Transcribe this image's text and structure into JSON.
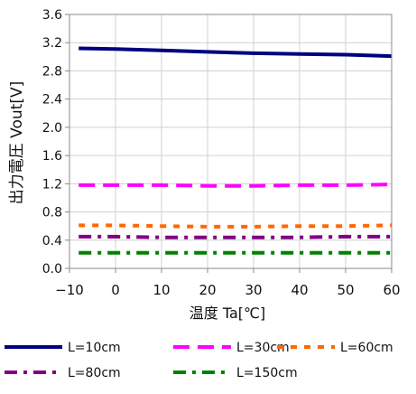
{
  "chart_data": {
    "type": "line",
    "title": "",
    "xlabel": "温度 Ta[℃]",
    "ylabel": "出力電圧 Vout[V]",
    "xlim": [
      -10,
      60
    ],
    "ylim": [
      0.0,
      3.6
    ],
    "x_ticks": [
      "−10",
      "0",
      "10",
      "20",
      "30",
      "40",
      "50",
      "60"
    ],
    "y_ticks": [
      "0.0",
      "0.4",
      "0.8",
      "1.2",
      "1.6",
      "2.0",
      "2.4",
      "2.8",
      "3.2",
      "3.6"
    ],
    "grid": true,
    "legend_position": "bottom",
    "x": [
      -8,
      0,
      10,
      20,
      30,
      40,
      50,
      60
    ],
    "series": [
      {
        "name": "L=10cm",
        "color": "#000080",
        "dash": "solid",
        "values": [
          3.12,
          3.11,
          3.09,
          3.07,
          3.05,
          3.04,
          3.03,
          3.01
        ]
      },
      {
        "name": "L=30cm",
        "color": "#ff00ff",
        "dash": "long-dash",
        "values": [
          1.18,
          1.18,
          1.18,
          1.17,
          1.17,
          1.18,
          1.18,
          1.19
        ]
      },
      {
        "name": "L=60cm",
        "color": "#ff6600",
        "dash": "dash",
        "values": [
          0.61,
          0.61,
          0.6,
          0.59,
          0.59,
          0.6,
          0.6,
          0.61
        ]
      },
      {
        "name": "L=80cm",
        "color": "#800080",
        "dash": "dash-dot",
        "values": [
          0.45,
          0.45,
          0.44,
          0.44,
          0.44,
          0.44,
          0.45,
          0.45
        ]
      },
      {
        "name": "L=150cm",
        "color": "#008000",
        "dash": "dash-dot",
        "values": [
          0.22,
          0.22,
          0.22,
          0.22,
          0.22,
          0.22,
          0.22,
          0.22
        ]
      }
    ]
  }
}
